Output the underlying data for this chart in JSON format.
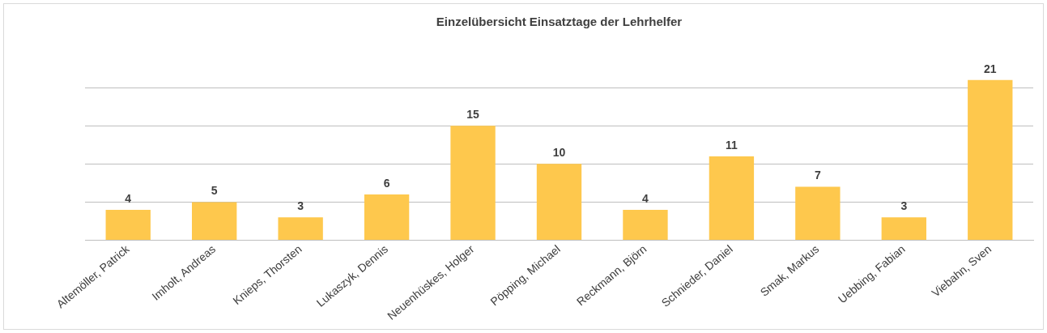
{
  "chart_data": {
    "type": "bar",
    "title": "Einzelübersicht Einsatztage der Lehrhelfer",
    "categories": [
      "Altemöller, Patrick",
      "Imholt, Andreas",
      "Knieps, Thorsten",
      "Lukaszyk, Dennis",
      "Neuenhüskes, Holger",
      "Pöpping, Michael",
      "Reckmann, Björn",
      "Schnieder, Daniel",
      "Smak, Markus",
      "Uebbing, Fabian",
      "Viebahn, Sven"
    ],
    "values": [
      4,
      5,
      3,
      6,
      15,
      10,
      4,
      11,
      7,
      3,
      21
    ],
    "color": "#fec84d",
    "yticks": [
      {
        "value": 0,
        "label": null
      },
      {
        "value": 5,
        "label": null
      },
      {
        "value": 10,
        "label": null
      },
      {
        "value": 15,
        "label": null
      },
      {
        "value": 20,
        "label": null
      }
    ],
    "grid": "y",
    "tick_labels": "x",
    "data_labels": true
  }
}
